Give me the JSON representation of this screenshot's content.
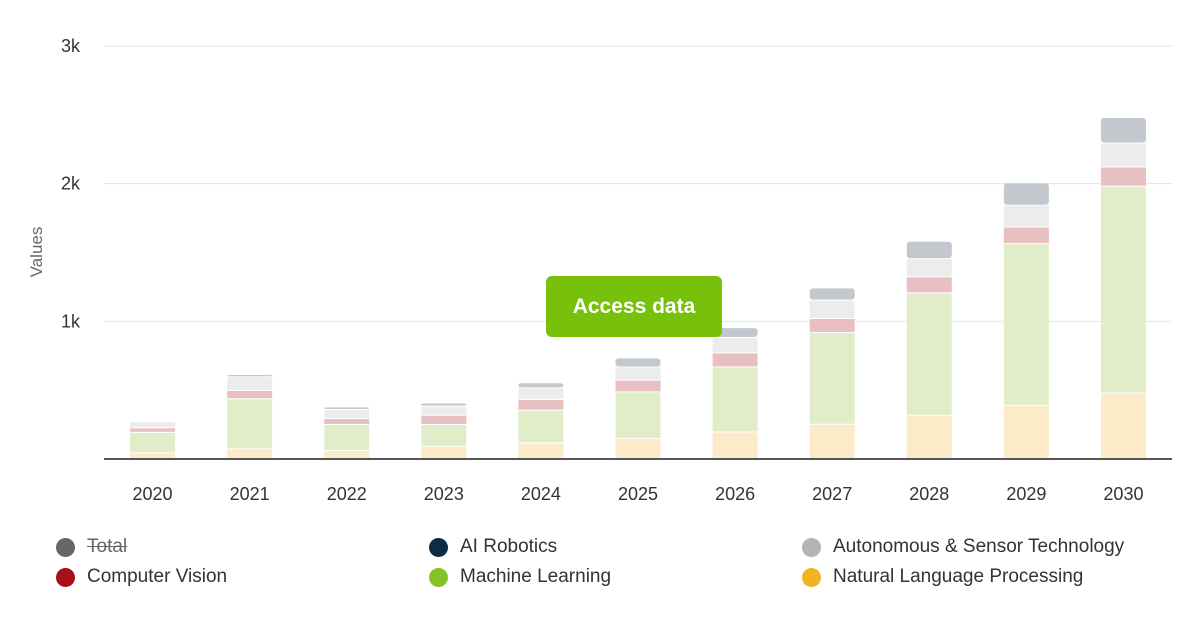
{
  "chart_data": {
    "type": "bar",
    "stacked": true,
    "categories": [
      "2020",
      "2021",
      "2022",
      "2023",
      "2024",
      "2025",
      "2026",
      "2027",
      "2028",
      "2029",
      "2030"
    ],
    "ylabel": "Values",
    "ylim": [
      0,
      3000
    ],
    "yticks": [
      {
        "value": 1000,
        "label": "1k"
      },
      {
        "value": 2000,
        "label": "2k"
      },
      {
        "value": 3000,
        "label": "3k"
      }
    ],
    "grid": true,
    "legend_position": "bottom",
    "series": [
      {
        "name": "Natural Language Processing",
        "color": "#f0b323",
        "fill": "#fbebc8",
        "values": [
          40,
          70,
          58,
          89,
          114,
          145,
          193,
          249,
          314,
          387,
          476
        ]
      },
      {
        "name": "Machine Learning",
        "color": "#84c225",
        "fill": "#e0edc8",
        "values": [
          150,
          364,
          189,
          158,
          237,
          339,
          472,
          666,
          889,
          1174,
          1502
        ]
      },
      {
        "name": "Computer Vision",
        "color": "#a50f15",
        "fill": "#e8c0c2",
        "values": [
          33,
          60,
          43,
          67,
          77,
          85,
          102,
          102,
          116,
          121,
          140
        ]
      },
      {
        "name": "Autonomous & Sensor Technology",
        "color": "#b3b3b3",
        "fill": "#ececec",
        "values": [
          45,
          99,
          66,
          66,
          85,
          96,
          112,
          133,
          133,
          158,
          174
        ]
      },
      {
        "name": "AI Robotics",
        "color": "#0f2a44",
        "fill": "#c3c8cf",
        "values": [
          5,
          17,
          19,
          24,
          37,
          66,
          72,
          89,
          126,
          162,
          185
        ]
      }
    ]
  },
  "legend": [
    {
      "label": "Total",
      "color": "#666666",
      "hidden": true
    },
    {
      "label": "AI Robotics",
      "color": "#0f2a44"
    },
    {
      "label": "Autonomous & Sensor Technology",
      "color": "#b3b3b3"
    },
    {
      "label": "Computer Vision",
      "color": "#a50f15"
    },
    {
      "label": "Machine Learning",
      "color": "#84c225"
    },
    {
      "label": "Natural Language Processing",
      "color": "#f0b323"
    }
  ],
  "access_button": {
    "label": "Access data",
    "color": "#78c10a"
  }
}
